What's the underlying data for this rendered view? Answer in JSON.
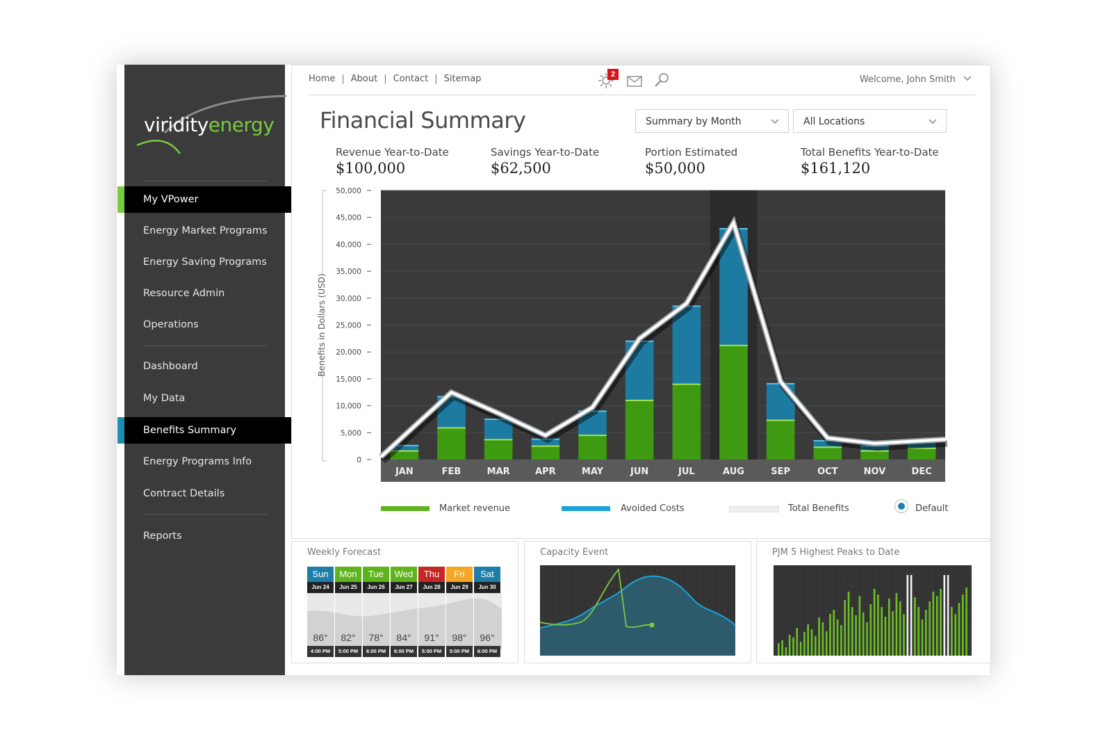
{
  "brand": {
    "part1": "viridity",
    "part2": "energy",
    "color_primary": "#7ac943"
  },
  "sidebar": {
    "items": [
      {
        "label": "My VPower",
        "state": "active-green"
      },
      {
        "label": "Energy Market Programs"
      },
      {
        "label": "Energy Saving Programs"
      },
      {
        "label": "Resource Admin"
      },
      {
        "label": "Operations"
      },
      {
        "label": "Dashboard"
      },
      {
        "label": "My Data"
      },
      {
        "label": "Benefits Summary",
        "state": "active-blue"
      },
      {
        "label": "Energy Programs Info"
      },
      {
        "label": "Contract Details"
      },
      {
        "label": "Reports"
      }
    ]
  },
  "topnav": {
    "links": [
      "Home",
      "About",
      "Contact",
      "Sitemap"
    ],
    "notification_count": "2",
    "welcome": "Welcome, John Smith",
    "icons": [
      "alert-icon",
      "mail-icon",
      "search-icon",
      "chevron-down-icon"
    ]
  },
  "page": {
    "title": "Financial Summary",
    "dropdown_period": "Summary by Month",
    "dropdown_location": "All Locations"
  },
  "stats": [
    {
      "label": "Revenue Year-to-Date",
      "value": "$100,000"
    },
    {
      "label": "Savings Year-to-Date",
      "value": "$62,500"
    },
    {
      "label": "Portion Estimated",
      "value": "$50,000"
    },
    {
      "label": "Total Benefits Year-to-Date",
      "value": "$161,120"
    }
  ],
  "chart_data": {
    "type": "bar",
    "ylabel": "Benefits in Dollars (USD)",
    "ylim": [
      0,
      50000
    ],
    "yticks": [
      "50,000",
      "45,000",
      "40,000",
      "35,000",
      "30,000",
      "25,000",
      "20,000",
      "15,000",
      "10,000",
      "5,000",
      "0"
    ],
    "categories": [
      "JAN",
      "FEB",
      "MAR",
      "APR",
      "MAY",
      "JUN",
      "JUL",
      "AUG",
      "SEP",
      "OCT",
      "NOV",
      "DEC"
    ],
    "highlight": "AUG",
    "series": [
      {
        "name": "Market revenue",
        "color": "#5fb41d",
        "values": [
          1600,
          5900,
          3700,
          2500,
          4500,
          11000,
          14000,
          21200,
          7300,
          2300,
          1600,
          2100
        ]
      },
      {
        "name": "Avoided Costs",
        "color": "#1aa3d9",
        "values": [
          1000,
          5800,
          3800,
          1300,
          4500,
          11000,
          14500,
          21700,
          6800,
          1200,
          900,
          1100
        ]
      },
      {
        "name": "Total Benefits",
        "color": "#eeeeee",
        "values": [
          4500,
          12500,
          8600,
          4500,
          9700,
          22500,
          29000,
          44000,
          14500,
          4000,
          3000,
          3500
        ]
      }
    ],
    "legend_extra": "Default",
    "legend_placement": "bottom"
  },
  "widgets": {
    "forecast": {
      "title": "Weekly Forecast",
      "days": [
        {
          "day": "Sun",
          "date": "Jun 24",
          "temp": "86°",
          "time": "4:00 PM",
          "color": "#1f7ea8"
        },
        {
          "day": "Mon",
          "date": "Jun 25",
          "temp": "82°",
          "time": "5:00 PM",
          "color": "#5fb41d"
        },
        {
          "day": "Tue",
          "date": "Jun 26",
          "temp": "78°",
          "time": "6:00 PM",
          "color": "#5fb41d"
        },
        {
          "day": "Wed",
          "date": "Jun 27",
          "temp": "84°",
          "time": "6:00 PM",
          "color": "#5fb41d"
        },
        {
          "day": "Thu",
          "date": "Jun 28",
          "temp": "91°",
          "time": "5:00 PM",
          "color": "#c62828"
        },
        {
          "day": "Fri",
          "date": "Jun 29",
          "temp": "98°",
          "time": "5:00 PM",
          "color": "#f5a623"
        },
        {
          "day": "Sat",
          "date": "Jun 30",
          "temp": "96°",
          "time": "6:00 PM",
          "color": "#1f7ea8"
        }
      ]
    },
    "capacity": {
      "title": "Capacity Event"
    },
    "peaks": {
      "title": "PJM 5 Highest Peaks to Date"
    }
  }
}
